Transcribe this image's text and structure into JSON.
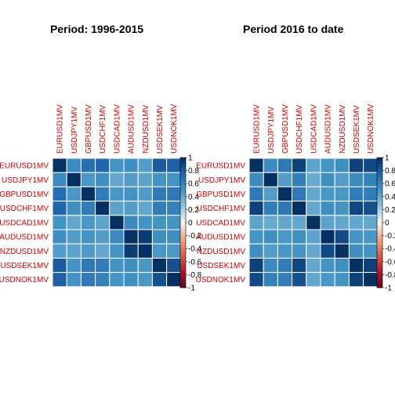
{
  "colors": {
    "label": "#cc0000",
    "cell_border": "#ffffff",
    "positive_high": "#053061",
    "neutral": "#f7f7f7",
    "negative_high": "#67001f"
  },
  "chart_data": [
    {
      "type": "heatmap",
      "title": "Period: 1996-2015",
      "variables": [
        "EURUSD1MV",
        "USDJPY1MV",
        "GBPUSD1MV",
        "USDCHF1MV",
        "USDCAD1MV",
        "AUDUSD1MV",
        "NZDUSD1MV",
        "USDSEK1MV",
        "USDNOK1MV"
      ],
      "matrix": [
        [
          1.0,
          0.55,
          0.7,
          0.75,
          0.5,
          0.52,
          0.45,
          0.8,
          0.78
        ],
        [
          0.55,
          1.0,
          0.48,
          0.52,
          0.4,
          0.45,
          0.42,
          0.5,
          0.5
        ],
        [
          0.7,
          0.48,
          1.0,
          0.62,
          0.48,
          0.5,
          0.46,
          0.65,
          0.65
        ],
        [
          0.75,
          0.52,
          0.62,
          1.0,
          0.42,
          0.45,
          0.4,
          0.62,
          0.6
        ],
        [
          0.5,
          0.4,
          0.48,
          0.42,
          1.0,
          0.55,
          0.5,
          0.5,
          0.5
        ],
        [
          0.52,
          0.45,
          0.5,
          0.45,
          0.55,
          1.0,
          0.95,
          0.52,
          0.52
        ],
        [
          0.45,
          0.42,
          0.46,
          0.4,
          0.5,
          0.95,
          1.0,
          0.48,
          0.48
        ],
        [
          0.8,
          0.5,
          0.65,
          0.62,
          0.5,
          0.52,
          0.48,
          1.0,
          0.85
        ],
        [
          0.78,
          0.5,
          0.65,
          0.6,
          0.5,
          0.52,
          0.48,
          0.85,
          1.0
        ]
      ],
      "zlim": [
        -1,
        1
      ],
      "legend_ticks": [
        "1",
        "0.8",
        "0.6",
        "0.4",
        "0.2",
        "0",
        "-0.2",
        "-0.4",
        "-0.6",
        "-0.8",
        "-1"
      ]
    },
    {
      "type": "heatmap",
      "title": "Period 2016 to date",
      "variables": [
        "EURUSD1MV",
        "USDJPY1MV",
        "GBPUSD1MV",
        "USDCHF1MV",
        "USDCAD1MV",
        "AUDUSD1MV",
        "NZDUSD1MV",
        "USDSEK1MV",
        "USDNOK1MV"
      ],
      "matrix": [
        [
          1.0,
          0.55,
          0.65,
          0.92,
          0.42,
          0.5,
          0.52,
          0.92,
          0.88
        ],
        [
          0.55,
          1.0,
          0.45,
          0.62,
          0.38,
          0.52,
          0.45,
          0.55,
          0.6
        ],
        [
          0.65,
          0.45,
          1.0,
          0.65,
          0.4,
          0.48,
          0.48,
          0.62,
          0.62
        ],
        [
          0.92,
          0.62,
          0.65,
          1.0,
          0.4,
          0.52,
          0.5,
          0.9,
          0.85
        ],
        [
          0.42,
          0.38,
          0.4,
          0.4,
          1.0,
          0.42,
          0.4,
          0.4,
          0.4
        ],
        [
          0.5,
          0.52,
          0.48,
          0.52,
          0.42,
          1.0,
          0.88,
          0.5,
          0.48
        ],
        [
          0.52,
          0.45,
          0.48,
          0.5,
          0.4,
          0.88,
          1.0,
          0.52,
          0.5
        ],
        [
          0.92,
          0.55,
          0.62,
          0.9,
          0.4,
          0.5,
          0.52,
          1.0,
          0.92
        ],
        [
          0.88,
          0.6,
          0.62,
          0.85,
          0.4,
          0.48,
          0.5,
          0.92,
          1.0
        ]
      ],
      "zlim": [
        -1,
        1
      ],
      "legend_ticks": [
        "1",
        "0.8",
        "0.6",
        "0.4",
        "0.2",
        "0",
        "-0.2",
        "-0.4",
        "-0.6",
        "-0.8",
        "-1"
      ]
    }
  ]
}
